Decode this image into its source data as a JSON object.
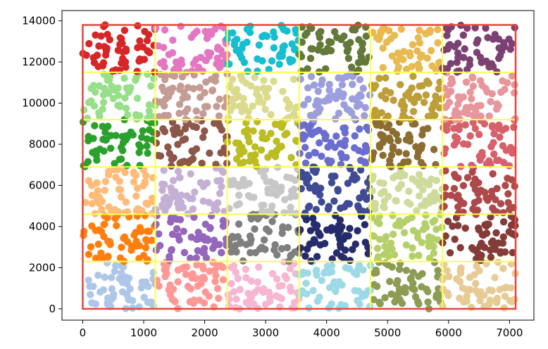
{
  "chart_data": {
    "type": "scatter",
    "title": "",
    "xlabel": "",
    "ylabel": "",
    "xlim": [
      -340,
      7400
    ],
    "ylim": [
      -550,
      14500
    ],
    "xticks": [
      0,
      1000,
      2000,
      3000,
      4000,
      5000,
      6000,
      7000
    ],
    "yticks": [
      0,
      2000,
      4000,
      6000,
      8000,
      10000,
      12000,
      14000
    ],
    "grid": false,
    "legend": "none",
    "bounding_box": {
      "x": [
        0,
        7100
      ],
      "y": [
        0,
        13800
      ],
      "color": "#e8453c"
    },
    "grid_lines": {
      "x": [
        1190,
        2370,
        3550,
        4720,
        5900
      ],
      "y": [
        2300,
        4600,
        6900,
        9200,
        11500
      ],
      "color": "#ffff4d"
    },
    "cell_colors": [
      [
        "#aec7e8",
        "#ff9896",
        "#f7b6d2",
        "#9edae5",
        "#8c9c54",
        "#e7cb94"
      ],
      [
        "#ff7f0e",
        "#9467bd",
        "#7f7f7f",
        "#262b6b",
        "#b5cf6b",
        "#843c39"
      ],
      [
        "#ffbb78",
        "#c5b0d5",
        "#c7c7c7",
        "#3f4b93",
        "#cedb9c",
        "#ad494a"
      ],
      [
        "#2ca02c",
        "#8c564b",
        "#bcbd22",
        "#6b6ecf",
        "#8c6d31",
        "#d6616b"
      ],
      [
        "#98df8a",
        "#c49c94",
        "#dbdb8d",
        "#9c9ede",
        "#bd9e39",
        "#e7969c"
      ],
      [
        "#d62728",
        "#e377c2",
        "#17becf",
        "#637939",
        "#e7ba52",
        "#7b4173"
      ]
    ],
    "points_per_cell": 55,
    "point_color_alpha": 1
  }
}
